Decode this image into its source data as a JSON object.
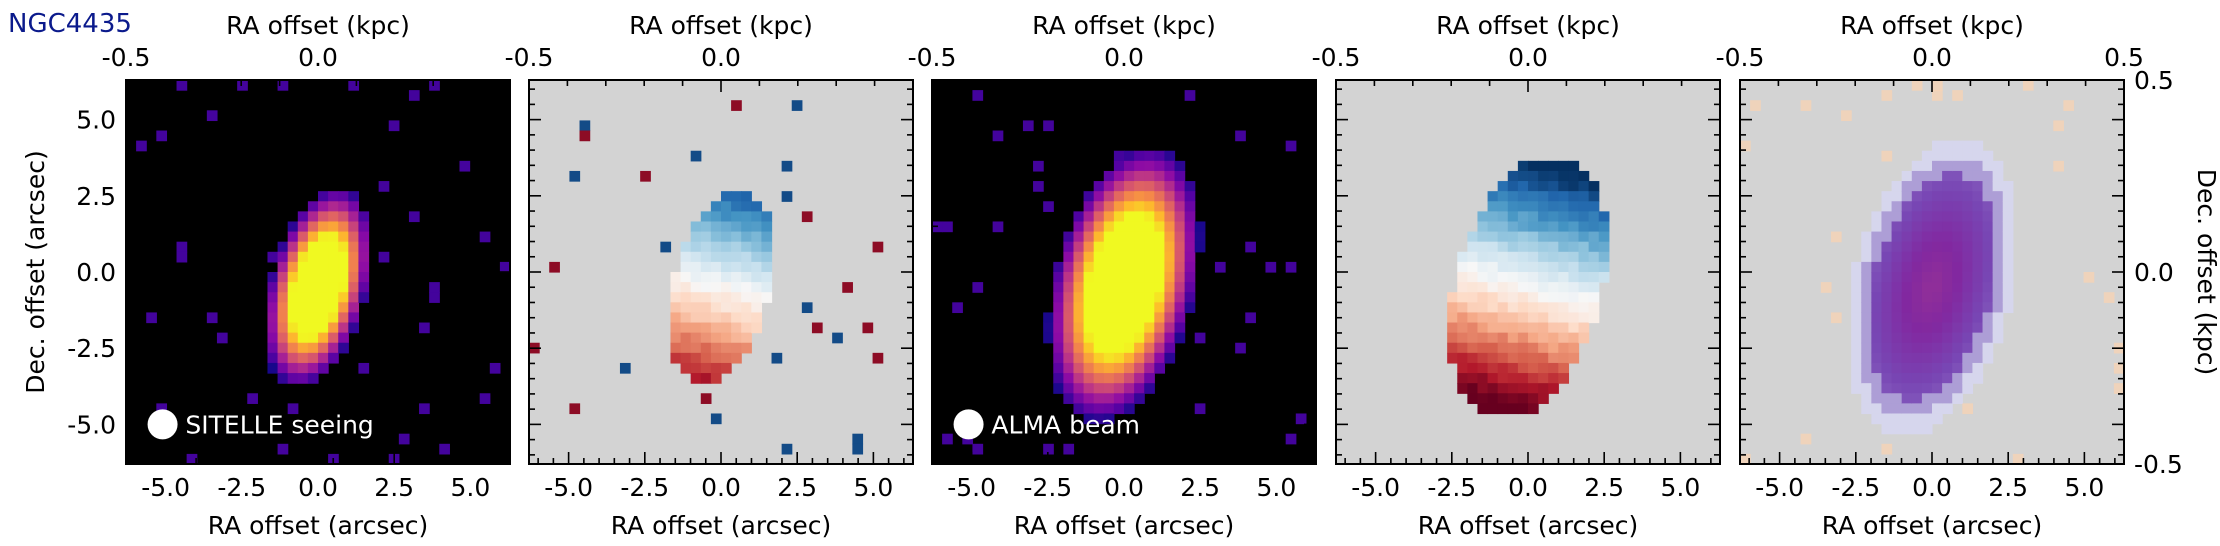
{
  "figure_label": "NGC4435",
  "colors": {
    "label_blue": "#0b1a8c",
    "map_background_dark": "#000000",
    "map_background_grey": "#d3d3d3",
    "colormap_intensity": "plasma",
    "colormap_velocity": "RdBu_r"
  },
  "chart_data": [
    {
      "type": "heatmap",
      "content": "SITELLE H-alpha intensity map",
      "colormap": "plasma",
      "background": "black",
      "xlabel": "RA offset (arcsec)",
      "xlabel_top": "RA offset (kpc)",
      "ylabel": "Dec. offset (arcsec)",
      "xlim": [
        -6.3,
        6.3
      ],
      "ylim": [
        -6.3,
        6.3
      ],
      "x_ticks": [
        -5.0,
        -2.5,
        0.0,
        2.5,
        5.0
      ],
      "x_tick_labels": [
        "-5.0",
        "-2.5",
        "0.0",
        "2.5",
        "5.0"
      ],
      "y_ticks": [
        5.0,
        2.5,
        0.0,
        -2.5,
        -5.0
      ],
      "y_tick_labels": [
        "5.0",
        "2.5",
        "0.0",
        "-2.5",
        "-5.0"
      ],
      "top_ticks_kpc": [
        -0.5,
        0.0
      ],
      "top_tick_labels": [
        "-0.5",
        "0.0"
      ],
      "annotation": "SITELLE seeing",
      "source": {
        "center": [
          0.0,
          -0.5
        ],
        "semi_axes_arcsec": [
          1.5,
          3.2
        ],
        "position_angle_deg": 15
      }
    },
    {
      "type": "heatmap",
      "content": "SITELLE velocity field",
      "colormap": "RdBu_r",
      "background": "lightgrey",
      "xlabel": "RA offset (arcsec)",
      "xlabel_top": "RA offset (kpc)",
      "xlim": [
        -6.3,
        6.3
      ],
      "ylim": [
        -6.3,
        6.3
      ],
      "x_ticks": [
        -5.0,
        -2.5,
        0.0,
        2.5,
        5.0
      ],
      "x_tick_labels": [
        "-5.0",
        "-2.5",
        "0.0",
        "2.5",
        "5.0"
      ],
      "top_ticks_kpc": [
        -0.5,
        0.0
      ],
      "top_tick_labels": [
        "-0.5",
        "0.0"
      ]
    },
    {
      "type": "heatmap",
      "content": "ALMA CO intensity map",
      "colormap": "plasma",
      "background": "black",
      "xlabel": "RA offset (arcsec)",
      "xlabel_top": "RA offset (kpc)",
      "xlim": [
        -6.3,
        6.3
      ],
      "ylim": [
        -6.3,
        6.3
      ],
      "x_ticks": [
        -5.0,
        -2.5,
        0.0,
        2.5,
        5.0
      ],
      "x_tick_labels": [
        "-5.0",
        "-2.5",
        "0.0",
        "2.5",
        "5.0"
      ],
      "top_ticks_kpc": [
        -0.5,
        0.0
      ],
      "top_tick_labels": [
        "-0.5",
        "0.0"
      ],
      "annotation": "ALMA beam",
      "source": {
        "center": [
          0.0,
          -0.4
        ],
        "semi_axes_arcsec": [
          2.2,
          4.4
        ],
        "position_angle_deg": 14
      }
    },
    {
      "type": "heatmap",
      "content": "ALMA velocity field",
      "colormap": "RdBu_r",
      "background": "lightgrey",
      "xlabel": "RA offset (arcsec)",
      "xlabel_top": "RA offset (kpc)",
      "xlim": [
        -6.3,
        6.3
      ],
      "ylim": [
        -6.3,
        6.3
      ],
      "x_ticks": [
        -5.0,
        -2.5,
        0.0,
        2.5,
        5.0
      ],
      "x_tick_labels": [
        "-5.0",
        "-2.5",
        "0.0",
        "2.5",
        "5.0"
      ],
      "top_ticks_kpc": [
        -0.5,
        0.0
      ],
      "top_tick_labels": [
        "-0.5",
        "0.0"
      ]
    },
    {
      "type": "heatmap",
      "content": "comparison map",
      "colormap": "purple-orange",
      "background": "lightgrey",
      "xlabel": "RA offset (arcsec)",
      "xlabel_top": "RA offset (kpc)",
      "ylabel_right": "Dec. offset (kpc)",
      "xlim": [
        -6.3,
        6.3
      ],
      "ylim": [
        -6.3,
        6.3
      ],
      "x_ticks": [
        -5.0,
        -2.5,
        0.0,
        2.5,
        5.0
      ],
      "x_tick_labels": [
        "-5.0",
        "-2.5",
        "0.0",
        "2.5",
        "5.0"
      ],
      "top_ticks_kpc": [
        -0.5,
        0.0,
        0.5
      ],
      "top_tick_labels": [
        "-0.5",
        "0.0",
        "0.5"
      ],
      "right_ticks_kpc": [
        0.5,
        0.0,
        -0.5
      ],
      "right_tick_labels": [
        "0.5",
        "0.0",
        "-0.5"
      ]
    }
  ]
}
